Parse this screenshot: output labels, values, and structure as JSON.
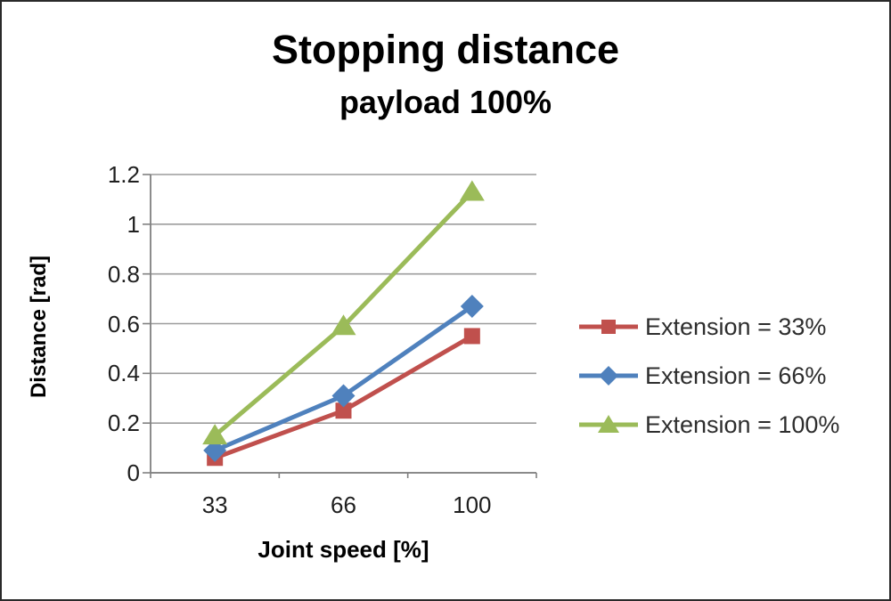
{
  "page": {
    "background": "#ffffff",
    "border_color": "#2a2a2a"
  },
  "chart_data": {
    "type": "line",
    "title": "Stopping distance",
    "subtitle": "payload 100%",
    "xlabel": "Joint speed [%]",
    "ylabel": "Distance [rad]",
    "categories": [
      "33",
      "66",
      "100"
    ],
    "series": [
      {
        "name": "Extension = 33%",
        "marker": "square",
        "color": "#C0504D",
        "values": [
          0.06,
          0.25,
          0.55
        ]
      },
      {
        "name": "Extension = 66%",
        "marker": "diamond",
        "color": "#4F81BD",
        "values": [
          0.09,
          0.31,
          0.67
        ]
      },
      {
        "name": "Extension = 100%",
        "marker": "triangle",
        "color": "#9BBB59",
        "values": [
          0.15,
          0.59,
          1.13
        ]
      }
    ],
    "ylim": [
      0,
      1.2
    ],
    "yticks": [
      0,
      0.2,
      0.4,
      0.6,
      0.8,
      1,
      1.2
    ],
    "ytick_labels": [
      "0",
      "0.2",
      "0.4",
      "0.6",
      "0.8",
      "1",
      "1.2"
    ],
    "grid": true,
    "legend_position": "right",
    "axis_color": "#808080",
    "gridline_color": "#9c9c9c",
    "tick_text_color": "#1f1f1f",
    "legend_text_color": "#2e2e2e"
  }
}
